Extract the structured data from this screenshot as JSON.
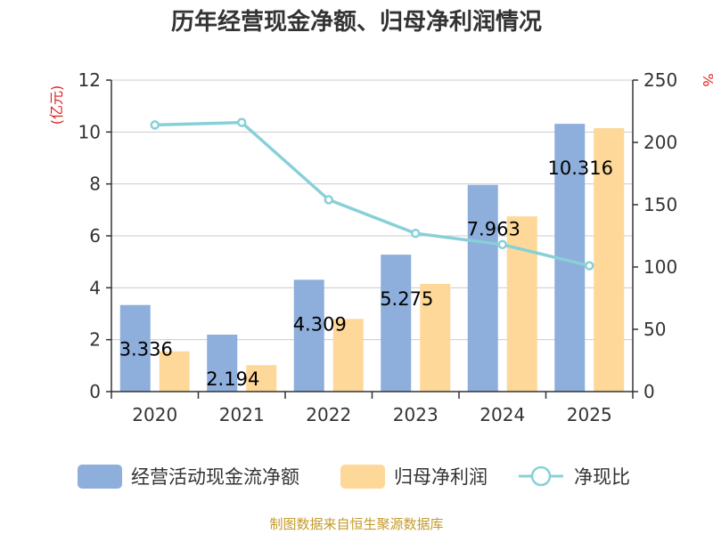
{
  "chart_data": {
    "type": "bar",
    "title": "历年经营现金净额、归母净利润情况",
    "categories": [
      "2020",
      "2021",
      "2022",
      "2023",
      "2024",
      "2025"
    ],
    "left_axis": {
      "unit": "(亿元)",
      "min": 0,
      "max": 12,
      "ticks": [
        0,
        2,
        4,
        6,
        8,
        10,
        12
      ]
    },
    "right_axis": {
      "unit": "%",
      "min": 0,
      "max": 250,
      "ticks": [
        0,
        50,
        100,
        150,
        200,
        250
      ]
    },
    "series": [
      {
        "name": "经营活动现金流净额",
        "type": "bar",
        "axis": "left",
        "color": "#8eaedb",
        "values": [
          3.336,
          2.194,
          4.309,
          5.275,
          7.963,
          10.316
        ]
      },
      {
        "name": "归母净利润",
        "type": "bar",
        "axis": "left",
        "color": "#fdd898",
        "values": [
          1.55,
          1.02,
          2.8,
          4.15,
          6.75,
          10.15
        ]
      },
      {
        "name": "净现比",
        "type": "line",
        "axis": "right",
        "color": "#88d0d8",
        "values": [
          214,
          216,
          154,
          127,
          118,
          101
        ]
      }
    ],
    "data_labels": [
      "3.336",
      "2.194",
      "4.309",
      "5.275",
      "7.963",
      "10.316"
    ],
    "legend_position": "bottom",
    "grid": true
  },
  "source_text": "制图数据来自恒生聚源数据库"
}
